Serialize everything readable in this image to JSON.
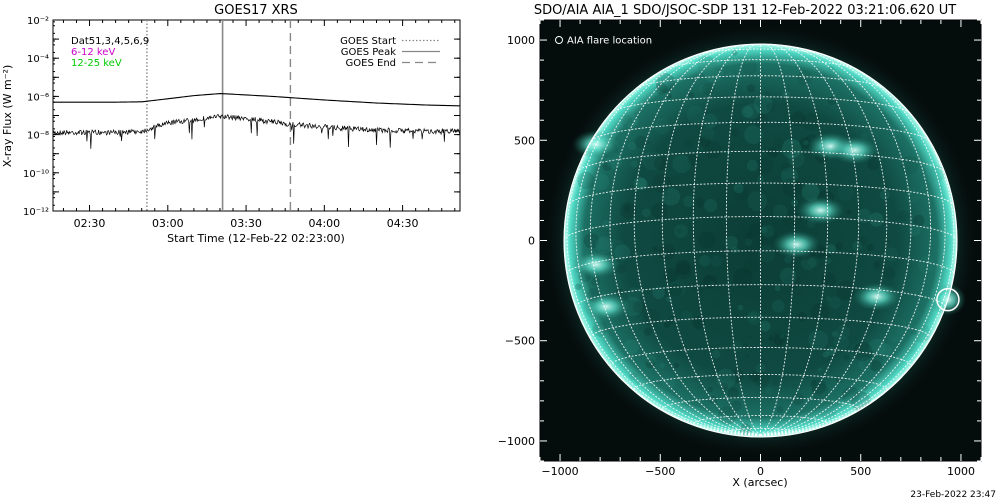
{
  "left_panel": {
    "title": "GOES17 XRS",
    "legend_left": [
      {
        "text": "Dat51,3,4,5,6,9",
        "color": "#000000"
      },
      {
        "text": "6-12 keV",
        "color": "#cc00cc"
      },
      {
        "text": "12-25 keV",
        "color": "#00cc00"
      }
    ],
    "legend_right": [
      {
        "text": "GOES Start",
        "style": "dotted"
      },
      {
        "text": "GOES Peak",
        "style": "solid"
      },
      {
        "text": "GOES End",
        "style": "dashed"
      }
    ]
  },
  "right_panel": {
    "title": "SDO/AIA AIA_1 SDO/JSOC-SDP 131 12-Feb-2022 03:21:06.620 UT",
    "legend": "AIA flare location",
    "footer": "23-Feb-2022 23:47"
  },
  "chart_data": [
    {
      "type": "line",
      "title": "GOES17 XRS",
      "xlabel": "Start Time (12-Feb-22 02:23:00)",
      "ylabel": "X-ray Flux (W m⁻²)",
      "xlim": [
        "02:16",
        "04:52"
      ],
      "ylim": [
        1e-12,
        0.01
      ],
      "yscale": "log",
      "x_ticks": [
        "02:30",
        "03:00",
        "03:30",
        "04:00",
        "04:30"
      ],
      "y_ticks": [
        "10⁻¹²",
        "10⁻¹⁰",
        "10⁻⁸",
        "10⁻⁶",
        "10⁻⁴",
        "10⁻²"
      ],
      "series": [
        {
          "name": "6-12 keV",
          "color": "#000000",
          "style": "solid",
          "points": [
            [
              "02:16",
              5e-07
            ],
            [
              "02:40",
              5e-07
            ],
            [
              "02:50",
              5.2e-07
            ],
            [
              "03:00",
              7.5e-07
            ],
            [
              "03:10",
              1.1e-06
            ],
            [
              "03:20",
              1.4e-06
            ],
            [
              "03:25",
              1.3e-06
            ],
            [
              "03:40",
              1e-06
            ],
            [
              "04:00",
              6.5e-07
            ],
            [
              "04:20",
              4.5e-07
            ],
            [
              "04:40",
              3.5e-07
            ],
            [
              "04:52",
              3.2e-07
            ]
          ]
        },
        {
          "name": "12-25 keV",
          "color": "#000000",
          "style": "noisy",
          "points": [
            [
              "02:16",
              1.3e-08
            ],
            [
              "02:40",
              1.3e-08
            ],
            [
              "02:50",
              1.5e-08
            ],
            [
              "03:00",
              4e-08
            ],
            [
              "03:10",
              6e-08
            ],
            [
              "03:20",
              9e-08
            ],
            [
              "03:30",
              7e-08
            ],
            [
              "03:47",
              3.5e-08
            ],
            [
              "04:00",
              2.5e-08
            ],
            [
              "04:20",
              1.7e-08
            ],
            [
              "04:40",
              1.5e-08
            ],
            [
              "04:52",
              1.6e-08
            ]
          ]
        }
      ],
      "vertical_markers": [
        {
          "name": "GOES Start",
          "x": "02:52",
          "style": "dotted"
        },
        {
          "name": "GOES Peak",
          "x": "03:21",
          "style": "solid"
        },
        {
          "name": "GOES End",
          "x": "03:47",
          "style": "dashed"
        }
      ],
      "legend_position": "top-right"
    },
    {
      "type": "image",
      "title": "SDO/AIA AIA_1 SDO/JSOC-SDP 131 12-Feb-2022 03:21:06.620 UT",
      "xlabel": "X (arcsec)",
      "ylabel": "",
      "xlim": [
        -1100,
        1100
      ],
      "ylim": [
        -1100,
        1100
      ],
      "x_ticks": [
        -1000,
        -500,
        0,
        500,
        1000
      ],
      "y_ticks": [
        -1000,
        -500,
        0,
        500,
        1000
      ],
      "solar_radius_arcsec": 980,
      "grid": "heliographic, 10 degree spacing",
      "flare_location": {
        "x": 935,
        "y": -295,
        "radius": 55
      },
      "active_regions": [
        {
          "x": 350,
          "y": 470
        },
        {
          "x": 470,
          "y": 450
        },
        {
          "x": -820,
          "y": 480
        },
        {
          "x": 180,
          "y": -20
        },
        {
          "x": 580,
          "y": -280
        },
        {
          "x": -820,
          "y": -120
        },
        {
          "x": -770,
          "y": -330
        },
        {
          "x": 300,
          "y": 150
        }
      ],
      "legend_position": "top-left"
    }
  ]
}
